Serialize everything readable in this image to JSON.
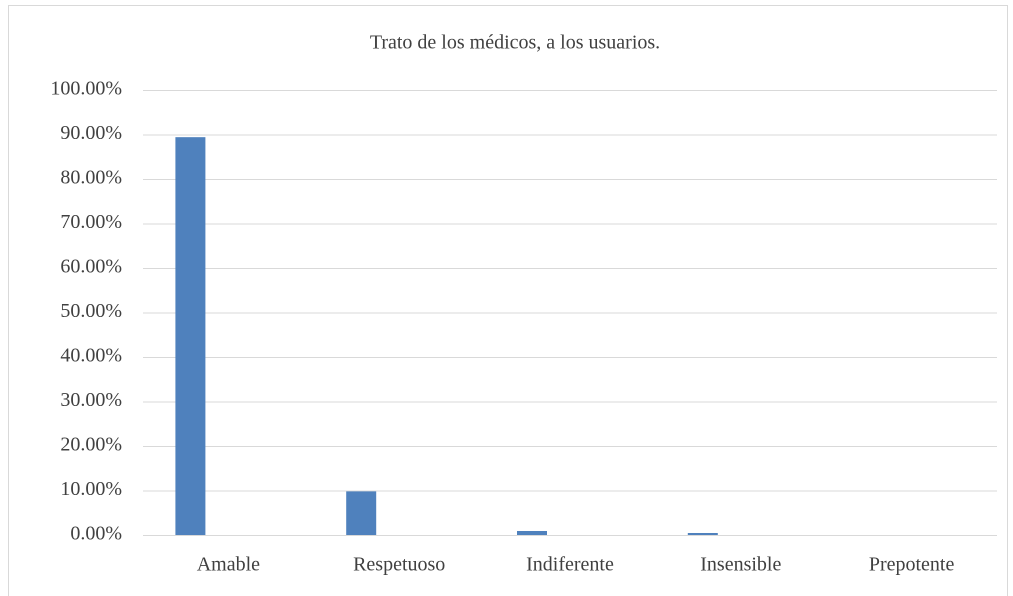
{
  "chart_data": {
    "type": "bar",
    "title": "Trato de los médicos, a los usuarios.",
    "categories": [
      "Amable",
      "Respetuoso",
      "Indiferente",
      "Insensible",
      "Prepotente"
    ],
    "values": [
      89.4,
      9.8,
      0.9,
      0.45,
      0
    ],
    "color": "#4f81bd",
    "ylim": [
      0,
      100
    ],
    "yticks": [
      {
        "value": 0,
        "label": "0.00%"
      },
      {
        "value": 10,
        "label": "10.00%"
      },
      {
        "value": 20,
        "label": "20.00%"
      },
      {
        "value": 30,
        "label": "30.00%"
      },
      {
        "value": 40,
        "label": "40.00%"
      },
      {
        "value": 50,
        "label": "50.00%"
      },
      {
        "value": 60,
        "label": "60.00%"
      },
      {
        "value": 70,
        "label": "70.00%"
      },
      {
        "value": 80,
        "label": "80.00%"
      },
      {
        "value": 90,
        "label": "90.00%"
      },
      {
        "value": 100,
        "label": "100.00%"
      }
    ],
    "grid": true
  }
}
